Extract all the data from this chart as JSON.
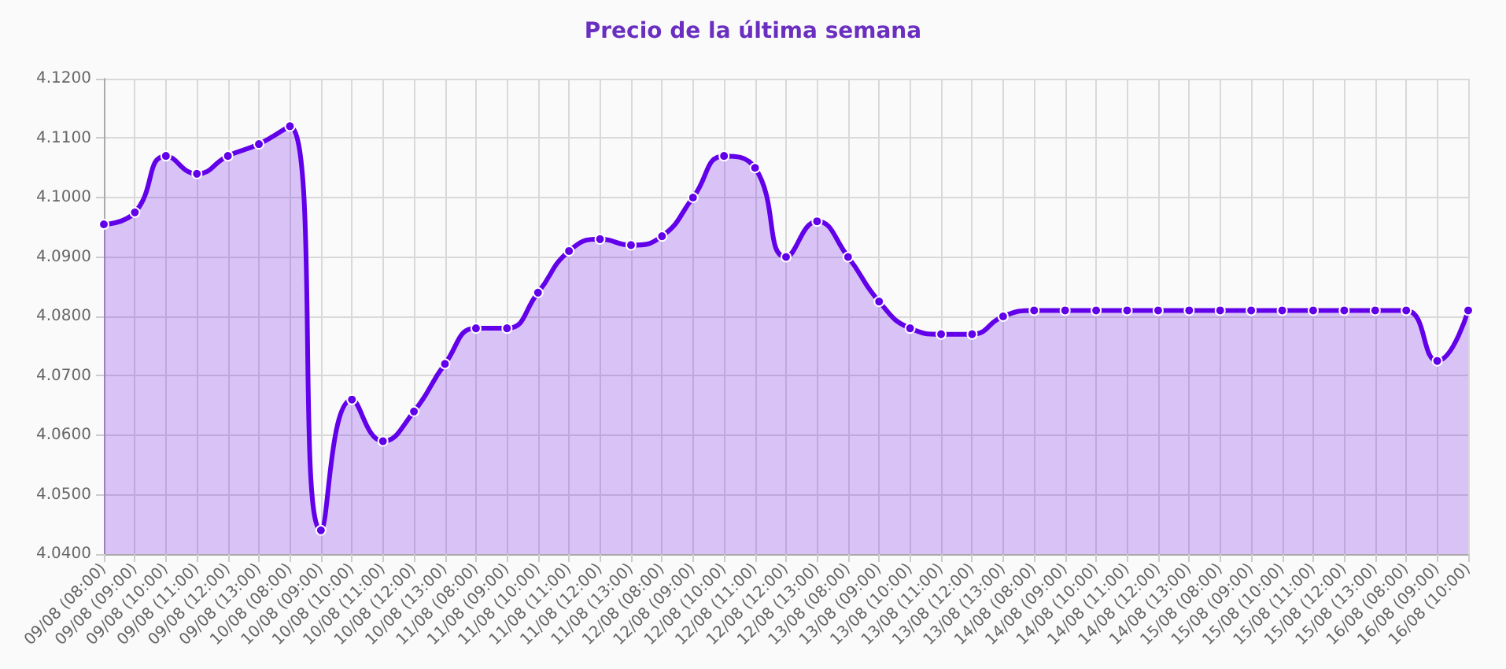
{
  "chart_data": {
    "type": "area",
    "title": "Precio de la última semana",
    "categories": [
      "09/08 (08:00)",
      "09/08 (09:00)",
      "09/08 (10:00)",
      "09/08 (11:00)",
      "09/08 (12:00)",
      "09/08 (13:00)",
      "10/08 (08:00)",
      "10/08 (09:00)",
      "10/08 (10:00)",
      "10/08 (11:00)",
      "10/08 (12:00)",
      "10/08 (13:00)",
      "11/08 (08:00)",
      "11/08 (09:00)",
      "11/08 (10:00)",
      "11/08 (11:00)",
      "11/08 (12:00)",
      "11/08 (13:00)",
      "12/08 (08:00)",
      "12/08 (09:00)",
      "12/08 (10:00)",
      "12/08 (11:00)",
      "12/08 (12:00)",
      "12/08 (13:00)",
      "13/08 (08:00)",
      "13/08 (09:00)",
      "13/08 (10:00)",
      "13/08 (11:00)",
      "13/08 (12:00)",
      "13/08 (13:00)",
      "14/08 (08:00)",
      "14/08 (09:00)",
      "14/08 (10:00)",
      "14/08 (11:00)",
      "14/08 (12:00)",
      "14/08 (13:00)",
      "15/08 (08:00)",
      "15/08 (09:00)",
      "15/08 (10:00)",
      "15/08 (11:00)",
      "15/08 (12:00)",
      "15/08 (13:00)",
      "16/08 (08:00)",
      "16/08 (09:00)",
      "16/08 (10:00)"
    ],
    "series": [
      {
        "color": "#6200ea",
        "values": [
          4.0955,
          4.0975,
          4.107,
          4.104,
          4.107,
          4.109,
          4.112,
          4.044,
          4.066,
          4.059,
          4.064,
          4.072,
          4.078,
          4.078,
          4.084,
          4.091,
          4.093,
          4.092,
          4.0935,
          4.1,
          4.107,
          4.105,
          4.09,
          4.096,
          4.09,
          4.0825,
          4.078,
          4.077,
          4.077,
          4.08,
          4.081,
          4.081,
          4.081,
          4.081,
          4.081,
          4.081,
          4.081,
          4.081,
          4.081,
          4.081,
          4.081,
          4.081,
          4.081,
          4.0725,
          4.081
        ]
      }
    ],
    "ylim": [
      4.04,
      4.12
    ],
    "yticks": [
      {
        "value": 4.04,
        "label": "4.0400"
      },
      {
        "value": 4.05,
        "label": "4.0500"
      },
      {
        "value": 4.06,
        "label": "4.0600"
      },
      {
        "value": 4.07,
        "label": "4.0700"
      },
      {
        "value": 4.08,
        "label": "4.0800"
      },
      {
        "value": 4.09,
        "label": "4.0900"
      },
      {
        "value": 4.1,
        "label": "4.1000"
      },
      {
        "value": 4.11,
        "label": "4.1100"
      },
      {
        "value": 4.12,
        "label": "4.1200"
      }
    ],
    "grid": true,
    "marker": "circle"
  }
}
